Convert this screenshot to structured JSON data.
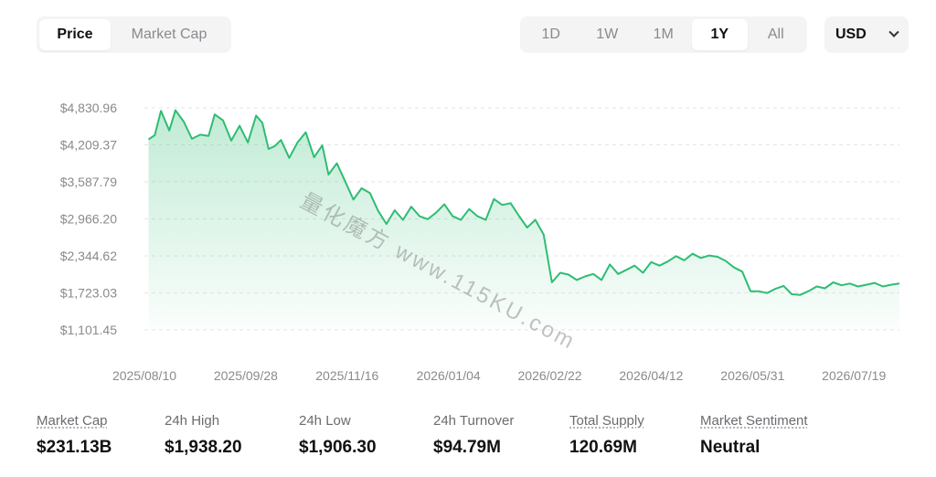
{
  "tabs": {
    "price": "Price",
    "market_cap": "Market Cap",
    "active": "price"
  },
  "ranges": [
    "1D",
    "1W",
    "1M",
    "1Y",
    "All"
  ],
  "active_range": "1Y",
  "currency": {
    "value": "USD"
  },
  "colors": {
    "line": "#2ebd73",
    "fill_top": "#2ebd73",
    "grid": "#e6e6e6"
  },
  "watermark": "量化魔方 www.115KU.com",
  "chart_data": {
    "type": "area",
    "title": "",
    "xlabel": "",
    "ylabel": "",
    "y_ticks": [
      "$4,830.96",
      "$4,209.37",
      "$3,587.79",
      "$2,966.20",
      "$2,344.62",
      "$1,723.03",
      "$1,101.45"
    ],
    "y_tick_values": [
      4830.96,
      4209.37,
      3587.79,
      2966.2,
      2344.62,
      1723.03,
      1101.45
    ],
    "x_ticks": [
      "2025/08/10",
      "2025/09/28",
      "2025/11/16",
      "2026/01/04",
      "2026/02/22",
      "2026/04/12",
      "2026/05/31",
      "2026/07/19"
    ],
    "x_start": "2025/08/10",
    "x_end": "2026/08/10",
    "ylim": [
      1101.45,
      4830.96
    ],
    "grid": true,
    "series": [
      {
        "x": [
          "2025/08/12",
          "2025/08/15",
          "2025/08/18",
          "2025/08/22",
          "2025/08/25",
          "2025/08/29",
          "2025/09/02",
          "2025/09/06",
          "2025/09/10",
          "2025/09/13",
          "2025/09/17",
          "2025/09/21",
          "2025/09/25",
          "2025/09/29",
          "2025/10/03",
          "2025/10/06",
          "2025/10/09",
          "2025/10/12",
          "2025/10/15",
          "2025/10/19",
          "2025/10/23",
          "2025/10/27",
          "2025/10/31",
          "2025/11/04",
          "2025/11/07",
          "2025/11/11",
          "2025/11/15",
          "2025/11/19",
          "2025/11/23",
          "2025/11/27",
          "2025/12/01",
          "2025/12/05",
          "2025/12/09",
          "2025/12/13",
          "2025/12/17",
          "2025/12/21",
          "2025/12/25",
          "2025/12/29",
          "2026/01/02",
          "2026/01/06",
          "2026/01/10",
          "2026/01/14",
          "2026/01/18",
          "2026/01/22",
          "2026/01/26",
          "2026/01/30",
          "2026/02/03",
          "2026/02/07",
          "2026/02/11",
          "2026/02/15",
          "2026/02/19",
          "2026/02/23",
          "2026/02/27",
          "2026/03/03",
          "2026/03/07",
          "2026/03/11",
          "2026/03/15",
          "2026/03/19",
          "2026/03/23",
          "2026/03/27",
          "2026/03/31",
          "2026/04/04",
          "2026/04/08",
          "2026/04/12",
          "2026/04/16",
          "2026/04/20",
          "2026/04/24",
          "2026/04/28",
          "2026/05/02",
          "2026/05/06",
          "2026/05/10",
          "2026/05/14",
          "2026/05/18",
          "2026/05/22",
          "2026/05/26",
          "2026/05/30",
          "2026/06/03",
          "2026/06/07",
          "2026/06/11",
          "2026/06/15",
          "2026/06/19",
          "2026/06/23",
          "2026/06/27",
          "2026/07/01",
          "2026/07/05",
          "2026/07/09",
          "2026/07/13",
          "2026/07/17",
          "2026/07/21",
          "2026/07/25",
          "2026/07/29",
          "2026/08/02",
          "2026/08/06",
          "2026/08/10"
        ],
        "values": [
          4300,
          4370,
          4780,
          4450,
          4790,
          4600,
          4310,
          4380,
          4360,
          4720,
          4620,
          4280,
          4530,
          4250,
          4700,
          4580,
          4140,
          4190,
          4290,
          3990,
          4250,
          4420,
          4000,
          4200,
          3710,
          3900,
          3600,
          3290,
          3480,
          3400,
          3100,
          2880,
          3110,
          2950,
          3170,
          3010,
          2960,
          3070,
          3210,
          3010,
          2950,
          3130,
          3010,
          2950,
          3300,
          3200,
          3230,
          3020,
          2820,
          2950,
          2700,
          1900,
          2060,
          2030,
          1940,
          2000,
          2040,
          1940,
          2200,
          2040,
          2110,
          2180,
          2060,
          2240,
          2180,
          2250,
          2340,
          2270,
          2380,
          2310,
          2350,
          2330,
          2260,
          2150,
          2080,
          1750,
          1750,
          1720,
          1790,
          1840,
          1700,
          1690,
          1750,
          1830,
          1800,
          1900,
          1850,
          1880,
          1830,
          1860,
          1890,
          1830,
          1860,
          1880
        ]
      }
    ]
  },
  "stats": [
    {
      "label": "Market Cap",
      "value": "$231.13B"
    },
    {
      "label": "24h High",
      "value": "$1,938.20"
    },
    {
      "label": "24h Low",
      "value": "$1,906.30"
    },
    {
      "label": "24h Turnover",
      "value": "$94.79M"
    },
    {
      "label": "Total Supply",
      "value": "120.69M"
    },
    {
      "label": "Market Sentiment",
      "value": "Neutral"
    }
  ]
}
